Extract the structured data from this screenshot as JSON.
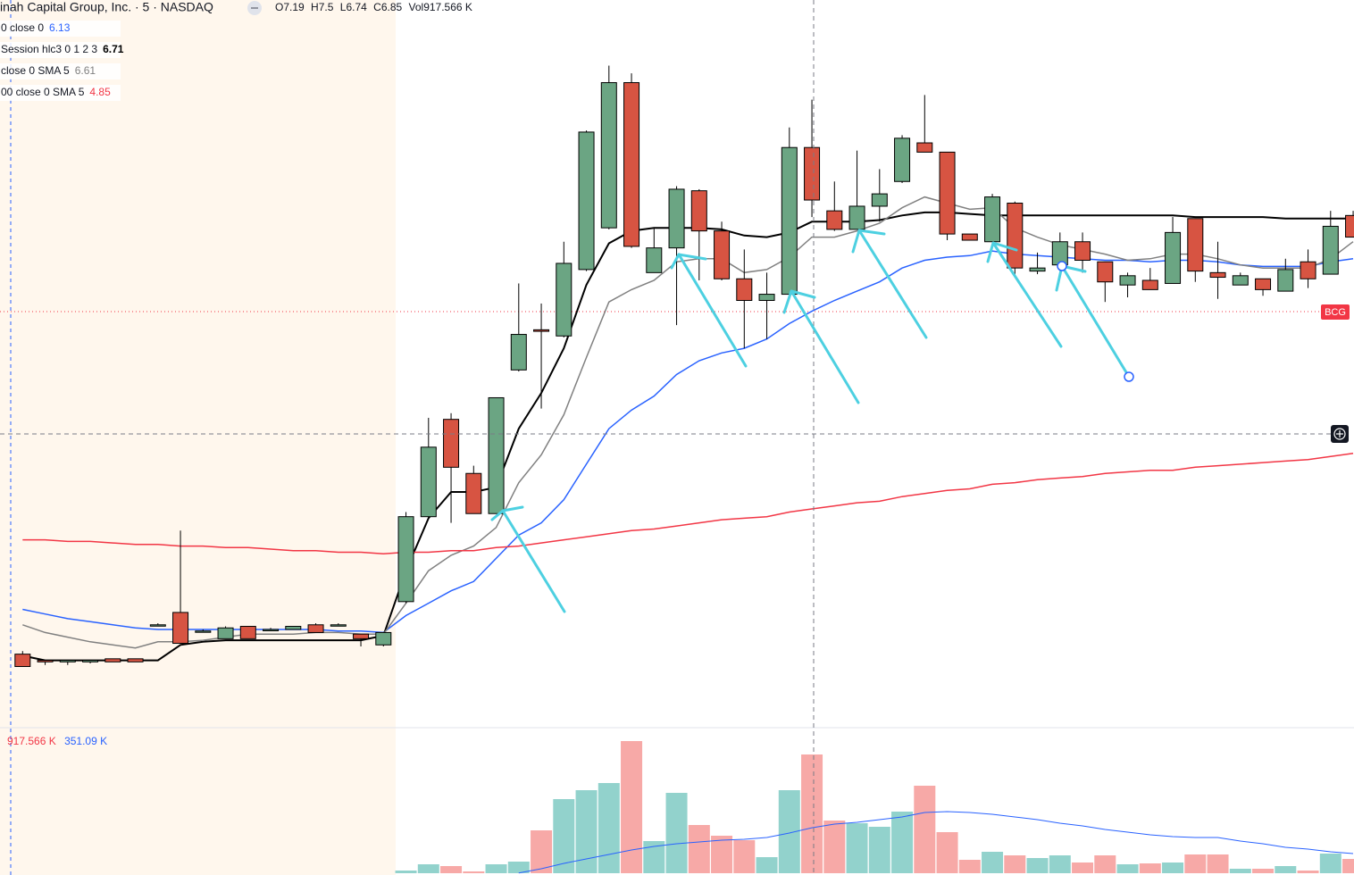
{
  "chart_data": [
    {
      "type": "candlestick",
      "title": "inah Capital Group, Inc. · 5 · NASDAQ",
      "ohlc_labels": [
        "O",
        "H",
        "L",
        "C"
      ],
      "volume_label": "Vol",
      "tag": "BCG",
      "up_color": "#6ba583",
      "down_color": "#d75442",
      "ylim": [
        3.434,
        8.145
      ],
      "open": [
        3.91,
        3.87,
        3.86,
        3.86,
        3.88,
        3.88,
        4.1,
        4.18,
        4.06,
        4.01,
        4.09,
        4.07,
        4.07,
        4.1,
        4.1,
        4.04,
        3.97,
        4.25,
        4.8,
        5.43,
        5.08,
        4.82,
        5.75,
        6.01,
        5.97,
        6.4,
        6.67,
        7.61,
        6.38,
        6.54,
        6.91,
        6.65,
        6.34,
        6.2,
        6.24,
        7.19,
        6.78,
        6.66,
        6.81,
        6.97,
        7.22,
        7.16,
        6.63,
        6.58,
        6.83,
        6.39,
        6.43,
        6.58,
        6.45,
        6.3,
        6.33,
        6.31,
        6.73,
        6.38,
        6.3,
        6.34,
        6.26,
        6.45,
        6.37,
        6.75
      ],
      "high": [
        3.93,
        3.87,
        3.87,
        3.87,
        3.88,
        3.88,
        4.11,
        4.71,
        4.07,
        4.09,
        4.09,
        4.08,
        4.09,
        4.11,
        4.11,
        4.04,
        4.05,
        4.83,
        5.44,
        5.47,
        5.13,
        5.57,
        6.31,
        6.18,
        6.58,
        7.3,
        7.72,
        7.67,
        6.67,
        6.94,
        6.92,
        6.71,
        6.53,
        6.38,
        7.32,
        7.5,
        6.97,
        7.17,
        7.05,
        7.27,
        7.53,
        7.16,
        6.63,
        6.89,
        6.84,
        6.51,
        6.64,
        6.64,
        6.45,
        6.38,
        6.41,
        6.74,
        6.73,
        6.58,
        6.38,
        6.34,
        6.47,
        6.53,
        6.78,
        6.78
      ],
      "low": [
        3.83,
        3.84,
        3.84,
        3.85,
        3.86,
        3.86,
        4.09,
        3.98,
        4.05,
        4.01,
        4.01,
        4.06,
        4.07,
        4.05,
        4.09,
        3.96,
        3.96,
        4.24,
        4.79,
        4.76,
        4.82,
        4.82,
        5.74,
        5.5,
        5.96,
        6.39,
        6.66,
        6.54,
        6.38,
        6.04,
        6.33,
        6.33,
        5.89,
        5.95,
        6.23,
        6.74,
        6.65,
        6.66,
        6.71,
        6.96,
        7.16,
        6.59,
        6.59,
        6.58,
        6.35,
        6.37,
        6.43,
        6.38,
        6.19,
        6.22,
        6.27,
        6.31,
        6.32,
        6.21,
        6.3,
        6.23,
        6.26,
        6.28,
        6.37,
        6.61
      ],
      "close": [
        3.83,
        3.86,
        3.87,
        3.87,
        3.86,
        3.86,
        4.1,
        3.98,
        4.06,
        4.08,
        4.01,
        4.07,
        4.09,
        4.05,
        4.1,
        4.01,
        4.05,
        4.8,
        5.25,
        5.12,
        4.82,
        5.57,
        5.98,
        6.0,
        6.44,
        7.29,
        7.61,
        6.55,
        6.54,
        6.92,
        6.65,
        6.34,
        6.2,
        6.24,
        7.19,
        6.85,
        6.66,
        6.81,
        6.89,
        7.25,
        7.16,
        6.63,
        6.59,
        6.87,
        6.41,
        6.41,
        6.58,
        6.46,
        6.32,
        6.36,
        6.27,
        6.64,
        6.39,
        6.35,
        6.36,
        6.27,
        6.4,
        6.34,
        6.68,
        6.61
      ],
      "series": [
        {
          "name": "0 close 0",
          "color": "#2962ff",
          "values": [
            4.2,
            4.17,
            4.14,
            4.12,
            4.1,
            4.08,
            4.07,
            4.07,
            4.07,
            4.07,
            4.07,
            4.07,
            4.07,
            4.07,
            4.06,
            4.06,
            4.05,
            4.16,
            4.24,
            4.32,
            4.38,
            4.53,
            4.68,
            4.76,
            4.91,
            5.14,
            5.37,
            5.49,
            5.58,
            5.72,
            5.81,
            5.86,
            5.89,
            5.95,
            6.05,
            6.13,
            6.2,
            6.26,
            6.32,
            6.41,
            6.46,
            6.48,
            6.49,
            6.52,
            6.5,
            6.49,
            6.48,
            6.47,
            6.46,
            6.46,
            6.45,
            6.46,
            6.46,
            6.45,
            6.43,
            6.42,
            6.42,
            6.42,
            6.45,
            6.47
          ]
        },
        {
          "name": "Session hlc3 0 1 2 3",
          "color": "#000000",
          "values": [
            3.9,
            3.87,
            3.87,
            3.87,
            3.87,
            3.87,
            3.87,
            3.97,
            3.99,
            4.0,
            4.0,
            4.0,
            4.0,
            4.0,
            4.0,
            4.0,
            4.03,
            4.45,
            4.79,
            4.96,
            4.96,
            4.99,
            5.37,
            5.6,
            5.89,
            6.3,
            6.57,
            6.65,
            6.67,
            6.67,
            6.67,
            6.66,
            6.62,
            6.61,
            6.64,
            6.71,
            6.71,
            6.71,
            6.72,
            6.75,
            6.77,
            6.77,
            6.76,
            6.75,
            6.75,
            6.75,
            6.75,
            6.75,
            6.75,
            6.75,
            6.75,
            6.75,
            6.74,
            6.74,
            6.74,
            6.74,
            6.73,
            6.73,
            6.73,
            6.73
          ]
        },
        {
          "name": "close 0 SMA 5",
          "color": "#808080",
          "values": [
            4.1,
            4.05,
            4.02,
            3.99,
            3.97,
            3.95,
            3.99,
            3.99,
            4.0,
            4.02,
            4.04,
            4.04,
            4.04,
            4.05,
            4.05,
            4.04,
            4.04,
            4.24,
            4.45,
            4.55,
            4.61,
            4.73,
            5.02,
            5.2,
            5.46,
            5.83,
            6.19,
            6.27,
            6.33,
            6.45,
            6.47,
            6.47,
            6.38,
            6.4,
            6.48,
            6.61,
            6.61,
            6.65,
            6.7,
            6.8,
            6.87,
            6.83,
            6.79,
            6.8,
            6.67,
            6.61,
            6.56,
            6.53,
            6.5,
            6.46,
            6.47,
            6.5,
            6.5,
            6.47,
            6.43,
            6.41,
            6.41,
            6.41,
            6.47,
            6.58
          ]
        },
        {
          "name": "00 close 0 SMA 5",
          "color": "#f23645",
          "values": [
            4.65,
            4.65,
            4.64,
            4.64,
            4.63,
            4.62,
            4.62,
            4.61,
            4.61,
            4.6,
            4.6,
            4.59,
            4.58,
            4.58,
            4.57,
            4.57,
            4.56,
            4.57,
            4.57,
            4.58,
            4.58,
            4.6,
            4.61,
            4.63,
            4.65,
            4.67,
            4.69,
            4.71,
            4.72,
            4.74,
            4.76,
            4.78,
            4.79,
            4.8,
            4.83,
            4.85,
            4.87,
            4.89,
            4.9,
            4.93,
            4.95,
            4.97,
            4.98,
            5.01,
            5.02,
            5.04,
            5.05,
            5.06,
            5.08,
            5.09,
            5.1,
            5.1,
            5.12,
            5.13,
            5.14,
            5.15,
            5.16,
            5.17,
            5.19,
            5.21
          ]
        }
      ]
    },
    {
      "type": "bar",
      "ylim": [
        0,
        1124700
      ],
      "up_color": "#92d2cc",
      "down_color": "#f7a9a7",
      "series": [
        {
          "color": "#f23645",
          "values": [
            0,
            0,
            0,
            0,
            0,
            0,
            0,
            0,
            0,
            0,
            0,
            0,
            0,
            0,
            0,
            0,
            0,
            20700,
            69000,
            55200,
            13800,
            69000,
            89700,
            331200,
            572700,
            641700,
            696900,
            1021200,
            248400,
            621000,
            372600,
            289800,
            255300,
            124200,
            641700,
            917566,
            407100,
            386400,
            358800,
            476100,
            676200,
            317400,
            103500,
            165600,
            138000,
            117300,
            138000,
            82800,
            138000,
            69000,
            75900,
            82800,
            144900,
            144900,
            34500,
            34500,
            55200,
            20700,
            151800,
            110400
          ],
          "value_labels": [
            null,
            null,
            null,
            null,
            null,
            null,
            null,
            null,
            null,
            null,
            null,
            null,
            null,
            null,
            null,
            null,
            null,
            null,
            null,
            null,
            null,
            null,
            null,
            null,
            null,
            null,
            null,
            null,
            null,
            null,
            null,
            null,
            null,
            null,
            null,
            "917.566 K",
            null,
            null,
            null,
            null,
            null,
            null,
            null,
            null,
            null,
            null,
            null,
            null,
            null,
            null,
            null,
            null,
            null,
            null,
            null,
            null,
            null,
            null,
            null,
            null
          ]
        },
        {
          "type": "line",
          "color": "#2962ff",
          "values": [
            null,
            null,
            null,
            null,
            null,
            null,
            null,
            null,
            null,
            null,
            null,
            null,
            null,
            null,
            null,
            null,
            null,
            null,
            null,
            null,
            null,
            null,
            2000,
            34500,
            75900,
            110400,
            144900,
            179400,
            207000,
            227700,
            241500,
            255300,
            262200,
            276000,
            310500,
            351090,
            379500,
            393300,
            414000,
            434700,
            469200,
            476100,
            469200,
            455400,
            434700,
            414000,
            386400,
            365700,
            338100,
            317400,
            296700,
            282900,
            276000,
            276000,
            248400,
            227700,
            200100,
            186300,
            165600,
            151800
          ],
          "value_labels": [
            null,
            null,
            null,
            null,
            null,
            null,
            null,
            null,
            null,
            null,
            null,
            null,
            null,
            null,
            null,
            null,
            null,
            null,
            null,
            null,
            null,
            null,
            null,
            null,
            null,
            null,
            null,
            null,
            null,
            null,
            null,
            null,
            null,
            null,
            null,
            "351.09 K",
            null,
            null,
            null,
            null,
            null,
            null,
            null,
            null,
            null,
            null,
            null,
            null,
            null,
            null,
            null,
            null,
            null,
            null,
            null,
            null,
            null,
            null,
            null,
            null
          ]
        }
      ]
    }
  ]
}
